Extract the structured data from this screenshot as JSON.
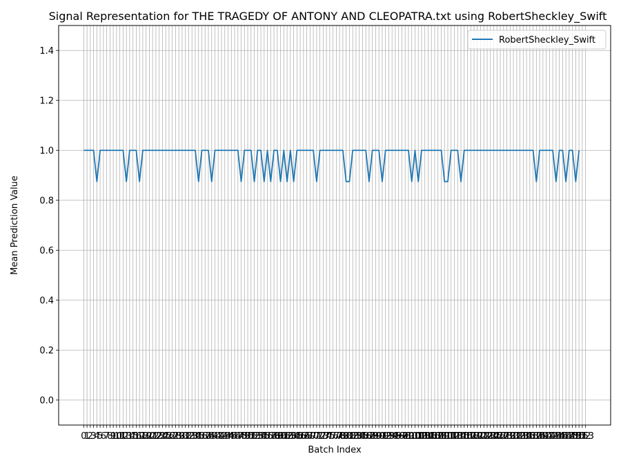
{
  "chart_data": {
    "type": "line",
    "title": "Signal Representation for THE TRAGEDY OF ANTONY AND CLEOPATRA.txt using RobertSheckley_Swift",
    "xlabel": "Batch Index",
    "ylabel": "Mean Prediction Value",
    "ylim": [
      -0.1,
      1.5
    ],
    "yticks": [
      0.0,
      0.2,
      0.4,
      0.6,
      0.8,
      1.0,
      1.2,
      1.4
    ],
    "ytick_labels": [
      "0.0",
      "0.2",
      "0.4",
      "0.6",
      "0.8",
      "1.0",
      "1.2",
      "1.4"
    ],
    "x_start": 0,
    "x_end": 153,
    "grid": true,
    "legend_position": "top-right",
    "series": [
      {
        "name": "RobertSheckley_Swift",
        "color": "#1f77b4",
        "values": [
          1,
          1,
          1,
          1,
          0.875,
          1,
          1,
          1,
          1,
          1,
          1,
          1,
          1,
          0.875,
          1,
          1,
          1,
          0.875,
          1,
          1,
          1,
          1,
          1,
          1,
          1,
          1,
          1,
          1,
          1,
          1,
          1,
          1,
          1,
          1,
          1,
          0.875,
          1,
          1,
          1,
          0.875,
          1,
          1,
          1,
          1,
          1,
          1,
          1,
          1,
          0.875,
          1,
          1,
          1,
          0.875,
          1,
          1,
          0.875,
          1,
          0.875,
          1,
          1,
          0.875,
          1,
          0.875,
          1,
          0.875,
          1,
          1,
          1,
          1,
          1,
          1,
          0.875,
          1,
          1,
          1,
          1,
          1,
          1,
          1,
          1,
          0.875,
          0.875,
          1,
          1,
          1,
          1,
          1,
          0.875,
          1,
          1,
          1,
          0.875,
          1,
          1,
          1,
          1,
          1,
          1,
          1,
          1,
          0.875,
          1,
          0.875,
          1,
          1,
          1,
          1,
          1,
          1,
          1,
          0.875,
          0.875,
          1,
          1,
          1,
          0.875,
          1,
          1,
          1,
          1,
          1,
          1,
          1,
          1,
          1,
          1,
          1,
          1,
          1,
          1,
          1,
          1,
          1,
          1,
          1,
          1,
          1,
          1,
          0.875,
          1,
          1,
          1,
          1,
          1,
          0.875,
          1,
          1,
          0.875,
          1,
          1,
          0.875,
          1
        ]
      }
    ]
  }
}
